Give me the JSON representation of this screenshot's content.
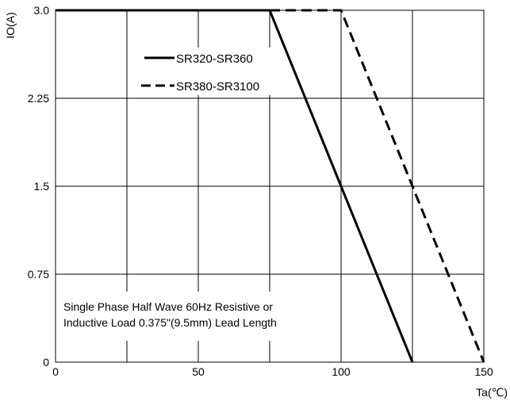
{
  "chart_data": {
    "type": "line",
    "title": "",
    "xlabel": "Ta(℃)",
    "ylabel": "IO(A)",
    "xlim": [
      0,
      150
    ],
    "ylim": [
      0,
      3.0
    ],
    "xticks": [
      "0",
      "50",
      "100",
      "150"
    ],
    "yticks": [
      "0",
      "0.75",
      "1.5",
      "2.25",
      "3.0"
    ],
    "grid": true,
    "legend_position": "top-left",
    "series": [
      {
        "name": "SR320-SR360",
        "style": "solid",
        "color": "#000000",
        "x": [
          0,
          75,
          100,
          125
        ],
        "y": [
          3.0,
          3.0,
          1.5,
          0
        ]
      },
      {
        "name": "SR380-SR3100",
        "style": "dashed",
        "color": "#000000",
        "x": [
          75,
          100,
          125,
          150
        ],
        "y": [
          3.0,
          3.0,
          1.5,
          0
        ]
      }
    ],
    "annotation": {
      "line1": "Single Phase Half Wave 60Hz Resistive or",
      "line2": "Inductive Load 0.375\"(9.5mm) Lead Length"
    }
  }
}
